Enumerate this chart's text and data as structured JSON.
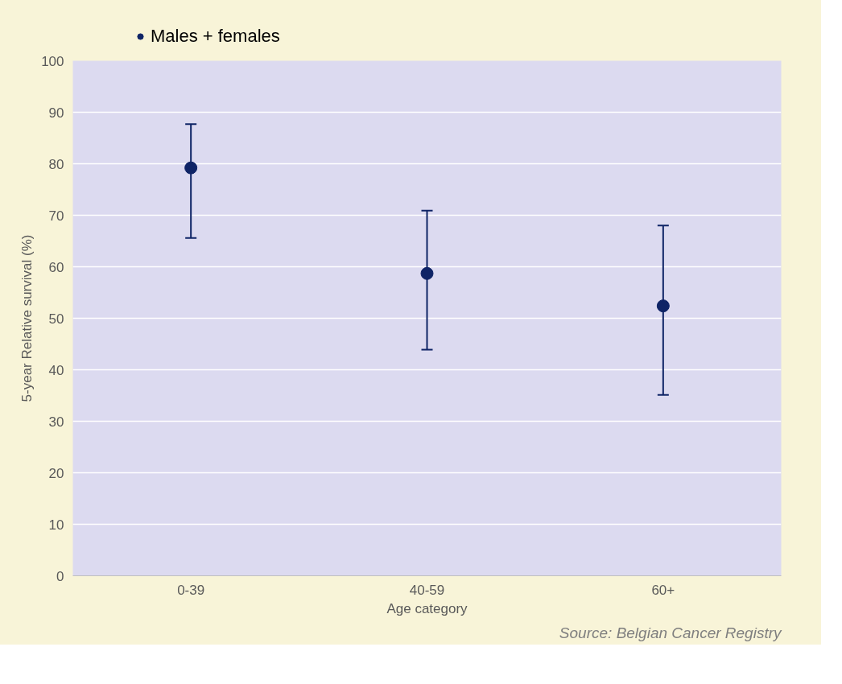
{
  "chart_data": {
    "type": "scatter",
    "xlabel": "Age category",
    "ylabel": "5-year Relative survival (%)",
    "categories": [
      "0-39",
      "40-59",
      "60+"
    ],
    "series": [
      {
        "name": "Males + females",
        "color": "#0f2466",
        "values": [
          79.2,
          58.7,
          52.4
        ],
        "errors": [
          [
            65.6,
            87.7
          ],
          [
            43.9,
            70.9
          ],
          [
            35.1,
            68.0
          ]
        ]
      }
    ],
    "ylim": [
      0,
      100
    ],
    "yticks": [
      0,
      10,
      20,
      30,
      40,
      50,
      60,
      70,
      80,
      90,
      100
    ],
    "grid": "y",
    "legend": "top left",
    "marker": "circle",
    "annotations": [
      "Source: Belgian Cancer Registry"
    ]
  }
}
